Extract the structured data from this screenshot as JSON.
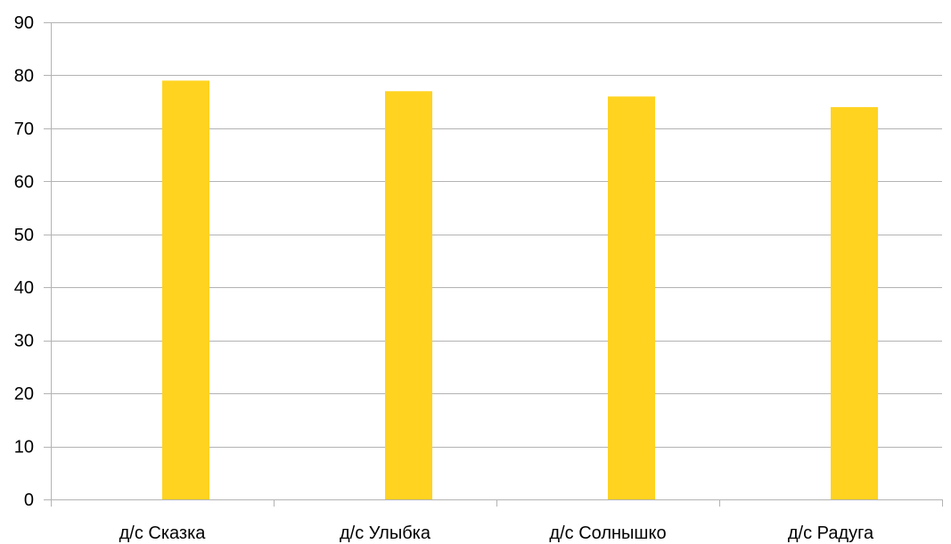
{
  "chart_data": {
    "type": "bar",
    "categories": [
      "д/с Сказка",
      "д/с Улыбка",
      "д/с Солнышко",
      "д/с Радуга"
    ],
    "series": [
      {
        "values": [
          null,
          null,
          null,
          null
        ],
        "color": "#ffffff"
      },
      {
        "values": [
          79,
          77,
          76,
          74
        ],
        "color": "#ffd320"
      }
    ],
    "ylim": [
      0,
      90
    ],
    "yticks": [
      0,
      10,
      20,
      30,
      40,
      50,
      60,
      70,
      80,
      90
    ],
    "grid": true,
    "legend": "none"
  },
  "colors": {
    "grid": "#b3b3b3",
    "axis": "#b3b3b3",
    "bar": "#ffd320"
  }
}
